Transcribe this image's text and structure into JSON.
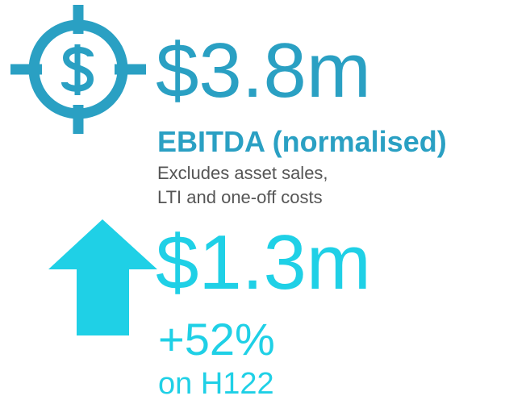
{
  "metrics": [
    {
      "value": "$3.8m",
      "label": "EBITDA (normalised)",
      "notes": [
        "Excludes asset sales,",
        "LTI and one-off costs"
      ]
    },
    {
      "value": "$1.3m",
      "change": "+52%",
      "comparison": "on H122"
    }
  ]
}
